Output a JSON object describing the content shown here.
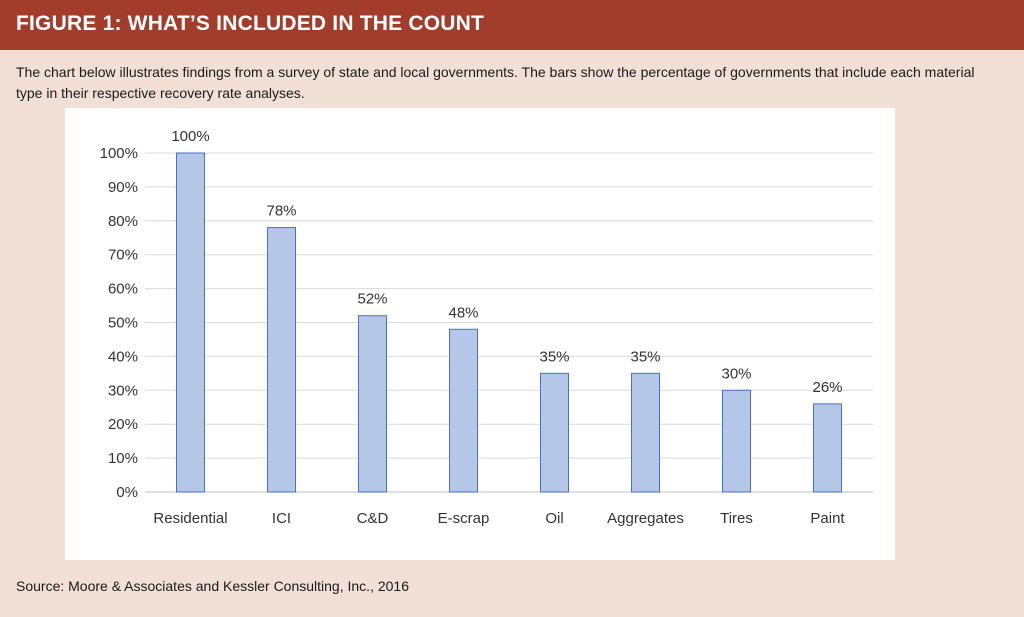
{
  "header": {
    "title": "FIGURE 1:  WHAT’S INCLUDED IN THE COUNT"
  },
  "intro": {
    "text": "The chart below illustrates findings from a survey of state and local governments.  The bars show the percentage of governments that include each material type in their respective recovery rate analyses."
  },
  "source": {
    "text": "Source: Moore & Associates and Kessler Consulting, Inc., 2016"
  },
  "colors": {
    "header_bg": "#a23d2c",
    "page_bg": "#f2e0d6",
    "bar_fill": "#b4c7e7",
    "bar_stroke": "#4472c4"
  },
  "chart_data": {
    "type": "bar",
    "categories": [
      "Residential",
      "ICI",
      "C&D",
      "E-scrap",
      "Oil",
      "Aggregates",
      "Tires",
      "Paint"
    ],
    "values": [
      100,
      78,
      52,
      48,
      35,
      35,
      30,
      26
    ],
    "data_labels": [
      "100%",
      "78%",
      "52%",
      "48%",
      "35%",
      "35%",
      "30%",
      "26%"
    ],
    "y_ticks": [
      "0%",
      "10%",
      "20%",
      "30%",
      "40%",
      "50%",
      "60%",
      "70%",
      "80%",
      "90%",
      "100%"
    ],
    "ylim": [
      0,
      100
    ],
    "grid": true,
    "legend": "none"
  }
}
